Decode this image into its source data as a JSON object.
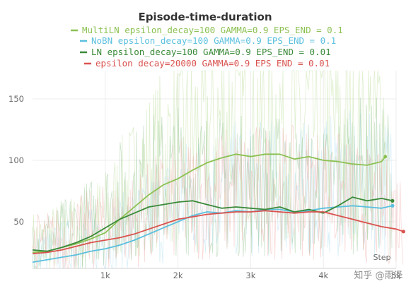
{
  "chart_data": {
    "type": "line",
    "title": "Episode-time-duration",
    "xlabel": "Step",
    "ylabel": "",
    "xlim": [
      0,
      5000
    ],
    "ylim": [
      12,
      173
    ],
    "xticks": [
      1000,
      2000,
      3000,
      4000,
      5000
    ],
    "xtick_labels": [
      "1k",
      "2k",
      "3k",
      "4k",
      "5k"
    ],
    "yticks": [
      50,
      100,
      150
    ],
    "ytick_labels": [
      "50",
      "100",
      "150"
    ],
    "grid": true,
    "legend_position": "top-center",
    "series": [
      {
        "name": "MultiLN epsilon_decay=100 GAMMA=0.9 EPS_END = 0.1",
        "color": "#8cc152",
        "x": [
          0,
          200,
          400,
          600,
          800,
          1000,
          1200,
          1400,
          1600,
          1800,
          2000,
          2200,
          2400,
          2600,
          2800,
          3000,
          3200,
          3400,
          3600,
          3800,
          4000,
          4200,
          4400,
          4600,
          4800,
          4850
        ],
        "y": [
          25,
          26,
          29,
          32,
          36,
          41,
          52,
          62,
          72,
          80,
          85,
          92,
          98,
          102,
          105,
          103,
          105,
          105,
          101,
          103,
          100,
          99,
          97,
          96,
          99,
          103
        ]
      },
      {
        "name": "NoBN epsilon_decay=100 GAMMA=0.9 EPS_END = 0.1",
        "color": "#5bc0de",
        "x": [
          0,
          200,
          400,
          600,
          800,
          1000,
          1200,
          1400,
          1600,
          1800,
          2000,
          2200,
          2400,
          2600,
          2800,
          3000,
          3200,
          3400,
          3600,
          3800,
          4000,
          4200,
          4400,
          4600,
          4800,
          4950
        ],
        "y": [
          17,
          19,
          21,
          23,
          26,
          28,
          31,
          35,
          40,
          45,
          50,
          55,
          58,
          57,
          59,
          58,
          60,
          60,
          58,
          59,
          61,
          62,
          63,
          62,
          61,
          63
        ]
      },
      {
        "name": "LN epsilon_decay=100 GAMMA=0.9 EPS_END = 0.01",
        "color": "#3a8a3a",
        "x": [
          0,
          200,
          400,
          600,
          800,
          1000,
          1200,
          1400,
          1600,
          1800,
          2000,
          2200,
          2400,
          2600,
          2800,
          3000,
          3200,
          3400,
          3600,
          3800,
          4000,
          4200,
          4400,
          4600,
          4800,
          4950
        ],
        "y": [
          27,
          26,
          29,
          33,
          38,
          45,
          52,
          57,
          62,
          64,
          66,
          67,
          64,
          61,
          62,
          61,
          60,
          62,
          58,
          60,
          57,
          63,
          70,
          67,
          69,
          67
        ]
      },
      {
        "name": "epsilon decay=20000 GAMMA=0.9 EPS END = 0.01",
        "color": "#d9534f",
        "x": [
          0,
          200,
          400,
          600,
          800,
          1000,
          1200,
          1400,
          1600,
          1800,
          2000,
          2200,
          2400,
          2600,
          2800,
          3000,
          3200,
          3400,
          3600,
          3800,
          4000,
          4200,
          4400,
          4600,
          4800,
          5000,
          5100
        ],
        "y": [
          24,
          25,
          27,
          30,
          33,
          35,
          37,
          40,
          44,
          48,
          52,
          54,
          56,
          57,
          58,
          58,
          59,
          58,
          57,
          58,
          58,
          55,
          52,
          49,
          46,
          44,
          42
        ]
      }
    ]
  },
  "watermark": "知乎 @雨泽"
}
